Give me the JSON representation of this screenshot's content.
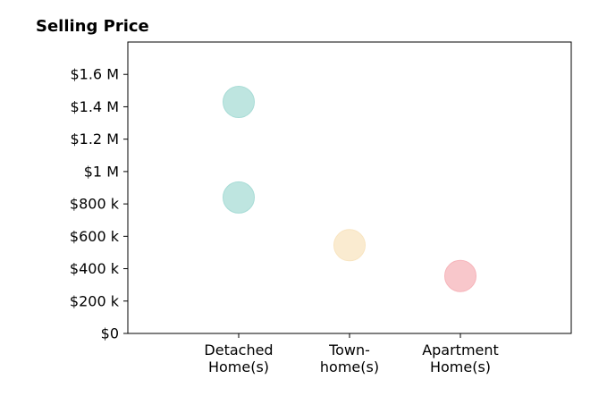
{
  "chart_data": {
    "type": "scatter",
    "title": "Selling Price",
    "categories": [
      [
        "Detached",
        "Home(s)"
      ],
      [
        "Town-",
        "home(s)"
      ],
      [
        "Apartment",
        "Home(s)"
      ]
    ],
    "points": [
      {
        "category": 0,
        "value": 1430000,
        "color": "#a8dcd6"
      },
      {
        "category": 0,
        "value": 840000,
        "color": "#a8dcd6"
      },
      {
        "category": 1,
        "value": 545000,
        "color": "#f8e4c0"
      },
      {
        "category": 2,
        "value": 355000,
        "color": "#f6b4ba"
      }
    ],
    "yticks": [
      {
        "value": 0,
        "label": "$0"
      },
      {
        "value": 200000,
        "label": "$200 k"
      },
      {
        "value": 400000,
        "label": "$400 k"
      },
      {
        "value": 600000,
        "label": "$600 k"
      },
      {
        "value": 800000,
        "label": "$800 k"
      },
      {
        "value": 1000000,
        "label": "$1 M"
      },
      {
        "value": 1200000,
        "label": "$1.2 M"
      },
      {
        "value": 1400000,
        "label": "$1.4 M"
      },
      {
        "value": 1600000,
        "label": "$1.6 M"
      }
    ],
    "ylim": [
      0,
      1800000
    ],
    "xlim": [
      -1,
      3
    ],
    "grid": false,
    "legend": "none"
  }
}
